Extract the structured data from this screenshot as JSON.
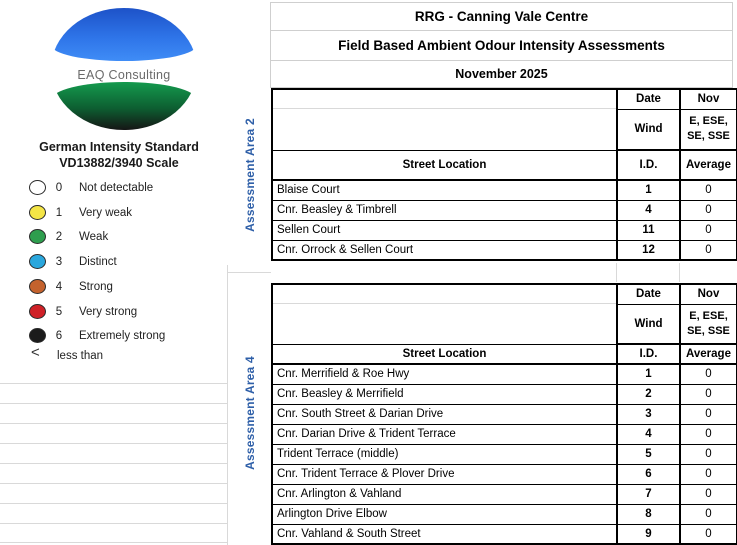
{
  "report": {
    "title": "RRG - Canning Vale Centre",
    "subtitle": "Field Based Ambient Odour Intensity Assessments",
    "period": "November 2025"
  },
  "legend_panel": {
    "logo_text": "EAQ Consulting",
    "standard_line1": "German Intensity Standard",
    "standard_line2": "VD13882/3940 Scale",
    "items": [
      {
        "value": "0",
        "label": "Not detectable",
        "color": "#ffffff"
      },
      {
        "value": "1",
        "label": "Very weak",
        "color": "#f4e546"
      },
      {
        "value": "2",
        "label": "Weak",
        "color": "#2e9e4e"
      },
      {
        "value": "3",
        "label": "Distinct",
        "color": "#2aa7dd"
      },
      {
        "value": "4",
        "label": "Strong",
        "color": "#c4622d"
      },
      {
        "value": "5",
        "label": "Very strong",
        "color": "#cf2127"
      },
      {
        "value": "6",
        "label": "Extremely strong",
        "color": "#1b1b1b"
      }
    ],
    "less_than_symbol": "<",
    "less_than_label": "less than"
  },
  "tables": [
    {
      "area_label": "Assessment Area 2",
      "date_label": "Date",
      "date_value": "Nov",
      "wind_label": "Wind",
      "wind_value": "E, ESE,\nSE, SSE",
      "street_header": "Street Location",
      "id_header": "I.D.",
      "avg_header": "Average",
      "rows": [
        {
          "street": "Blaise Court",
          "id": "1",
          "avg": "0"
        },
        {
          "street": "Cnr. Beasley & Timbrell",
          "id": "4",
          "avg": "0"
        },
        {
          "street": "Sellen Court",
          "id": "11",
          "avg": "0"
        },
        {
          "street": "Cnr. Orrock & Sellen Court",
          "id": "12",
          "avg": "0"
        }
      ]
    },
    {
      "area_label": "Assessment Area 4",
      "date_label": "Date",
      "date_value": "Nov",
      "wind_label": "Wind",
      "wind_value": "E, ESE,\nSE, SSE",
      "street_header": "Street Location",
      "id_header": "I.D.",
      "avg_header": "Average",
      "rows": [
        {
          "street": "Cnr. Merrifield & Roe Hwy",
          "id": "1",
          "avg": "0"
        },
        {
          "street": "Cnr. Beasley & Merrifield",
          "id": "2",
          "avg": "0"
        },
        {
          "street": "Cnr. South Street & Darian Drive",
          "id": "3",
          "avg": "0"
        },
        {
          "street": "Cnr. Darian Drive & Trident Terrace",
          "id": "4",
          "avg": "0"
        },
        {
          "street": "Trident Terrace (middle)",
          "id": "5",
          "avg": "0"
        },
        {
          "street": "Cnr. Trident Terrace & Plover Drive",
          "id": "6",
          "avg": "0"
        },
        {
          "street": "Cnr. Arlington & Vahland",
          "id": "7",
          "avg": "0"
        },
        {
          "street": "Arlington Drive Elbow",
          "id": "8",
          "avg": "0"
        },
        {
          "street": "Cnr. Vahland & South Street",
          "id": "9",
          "avg": "0"
        }
      ]
    }
  ],
  "colors": {
    "area_label_blue": "#2e5fa8",
    "table_border": "#000000",
    "gridline": "#d9d9d9",
    "title_gridline": "#cfcfcf",
    "logo_blue_top": "#1d52c8",
    "logo_blue_bottom": "#3f8cf6",
    "logo_green_top": "#149a4e",
    "logo_green_bottom": "#151515",
    "circle_outline": "#2b2b2b",
    "logo_text_gray": "#6a6a6a"
  }
}
